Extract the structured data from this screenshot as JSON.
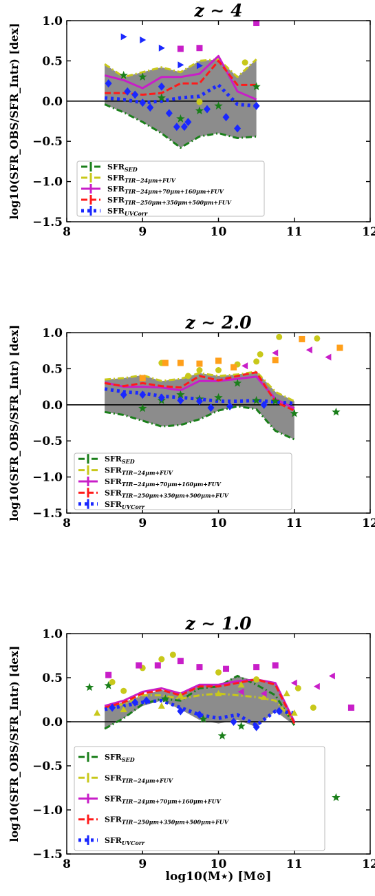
{
  "colors": {
    "sed": "#1a7f1a",
    "tir24": "#c8c81a",
    "tir160": "#c81ec8",
    "tir500": "#ff1a1a",
    "uv": "#1a28ff",
    "band": "#8c8c8c",
    "orange": "#ff9f1a"
  },
  "chart_data": [
    {
      "type": "line",
      "title": "z ∼ 4",
      "xlabel": "",
      "ylabel": "log10(SFR_OBS/SFR_Intr) [dex]",
      "xlim": [
        8,
        12
      ],
      "ylim": [
        -1.5,
        1.0
      ],
      "xticks": [
        8,
        9,
        10,
        11,
        12
      ],
      "yticks": [
        -1.5,
        -1.0,
        -0.5,
        0.0,
        0.5,
        1.0
      ],
      "x": [
        8.5,
        8.75,
        9.0,
        9.25,
        9.5,
        9.75,
        10.0,
        10.25,
        10.5
      ],
      "band_upper": [
        0.46,
        0.3,
        0.36,
        0.42,
        0.36,
        0.5,
        0.52,
        0.3,
        0.52
      ],
      "band_lower": [
        -0.04,
        -0.14,
        -0.26,
        -0.4,
        -0.58,
        -0.44,
        -0.4,
        -0.46,
        -0.44
      ],
      "series": [
        {
          "name": "SFR_SED",
          "key": "sed",
          "values": [
            -0.04,
            -0.14,
            -0.26,
            -0.4,
            -0.58,
            -0.44,
            -0.4,
            -0.46,
            -0.44
          ],
          "style": "dashdot"
        },
        {
          "name": "SFR_TIR−24μm+FUV",
          "key": "tir24",
          "values": [
            0.46,
            0.3,
            0.36,
            0.42,
            0.36,
            0.5,
            0.52,
            0.3,
            0.52
          ],
          "style": "dashdot"
        },
        {
          "name": "SFR_TIR−24μm+70μm+160μm+FUV",
          "key": "tir160",
          "values": [
            0.32,
            0.26,
            0.16,
            0.3,
            0.3,
            0.34,
            0.56,
            0.12,
            0.02
          ],
          "style": "solid"
        },
        {
          "name": "SFR_TIR−250μm+350μm+500μm+FUV",
          "key": "tir500",
          "values": [
            0.1,
            0.1,
            0.08,
            0.1,
            0.22,
            0.22,
            0.5,
            0.2,
            0.2
          ],
          "style": "dashed"
        },
        {
          "name": "SFR_UVCorr",
          "key": "uv",
          "values": [
            0.04,
            0.02,
            -0.02,
            0.0,
            0.04,
            0.06,
            0.2,
            -0.04,
            -0.06
          ],
          "style": "dotted"
        }
      ],
      "scatter": [
        {
          "key": "sed",
          "marker": "star",
          "points": [
            [
              8.75,
              0.32
            ],
            [
              9.0,
              0.3
            ],
            [
              9.25,
              0.04
            ],
            [
              9.5,
              -0.22
            ],
            [
              9.75,
              -0.12
            ],
            [
              10.0,
              -0.06
            ],
            [
              10.5,
              0.18
            ]
          ]
        },
        {
          "key": "tir24",
          "marker": "circle",
          "points": [
            [
              9.75,
              -0.01
            ],
            [
              10.35,
              0.48
            ]
          ]
        },
        {
          "key": "tir160",
          "marker": "square",
          "points": [
            [
              9.5,
              0.65
            ],
            [
              9.75,
              0.66
            ],
            [
              10.5,
              0.97
            ]
          ]
        },
        {
          "key": "uv",
          "marker": "triangle-right",
          "points": [
            [
              8.75,
              0.8
            ],
            [
              9.0,
              0.76
            ],
            [
              9.25,
              0.66
            ],
            [
              9.5,
              0.45
            ],
            [
              9.75,
              0.44
            ]
          ]
        },
        {
          "key": "uv",
          "marker": "diamond",
          "points": [
            [
              8.55,
              0.22
            ],
            [
              8.8,
              0.12
            ],
            [
              8.9,
              0.08
            ],
            [
              9.0,
              -0.02
            ],
            [
              9.1,
              -0.08
            ],
            [
              9.25,
              0.18
            ],
            [
              9.35,
              -0.15
            ],
            [
              9.45,
              -0.32
            ],
            [
              9.55,
              -0.32
            ],
            [
              9.6,
              -0.26
            ],
            [
              9.85,
              -0.1
            ],
            [
              10.1,
              -0.2
            ],
            [
              10.25,
              -0.34
            ],
            [
              10.5,
              -0.06
            ]
          ]
        }
      ],
      "legend": "lower-left"
    },
    {
      "type": "line",
      "title": "z ∼ 2.0",
      "xlabel": "",
      "ylabel": "log10(SFR_OBS/SFR_Intr) [dex]",
      "xlim": [
        8,
        12
      ],
      "ylim": [
        -1.5,
        1.0
      ],
      "xticks": [
        8,
        9,
        10,
        11,
        12
      ],
      "yticks": [
        -1.5,
        -1.0,
        -0.5,
        0.0,
        0.5,
        1.0
      ],
      "x": [
        8.5,
        8.75,
        9.0,
        9.25,
        9.5,
        9.75,
        10.0,
        10.25,
        10.5,
        10.75,
        11.0
      ],
      "band_upper": [
        0.35,
        0.37,
        0.41,
        0.33,
        0.36,
        0.44,
        0.4,
        0.42,
        0.46,
        0.18,
        0.05
      ],
      "band_lower": [
        -0.1,
        -0.14,
        -0.22,
        -0.3,
        -0.28,
        -0.2,
        -0.08,
        -0.02,
        -0.06,
        -0.36,
        -0.48
      ],
      "series": [
        {
          "name": "SFR_SED",
          "key": "sed",
          "values": [
            -0.1,
            -0.14,
            -0.22,
            -0.3,
            -0.28,
            -0.2,
            -0.08,
            -0.02,
            -0.06,
            -0.36,
            -0.48
          ],
          "style": "dashdot"
        },
        {
          "name": "SFR_TIR−24μm+FUV",
          "key": "tir24",
          "values": [
            0.35,
            0.37,
            0.41,
            0.33,
            0.36,
            0.44,
            0.4,
            0.42,
            0.46,
            0.18,
            0.05
          ],
          "style": "dashdot"
        },
        {
          "name": "SFR_TIR−24μm+70μm+160μm+FUV",
          "key": "tir160",
          "values": [
            0.31,
            0.25,
            0.25,
            0.24,
            0.2,
            0.33,
            0.33,
            0.36,
            0.39,
            0.08,
            -0.05
          ],
          "style": "solid"
        },
        {
          "name": "SFR_TIR−250μm+350μm+500μm+FUV",
          "key": "tir500",
          "values": [
            0.3,
            0.26,
            0.3,
            0.26,
            0.24,
            0.4,
            0.34,
            0.4,
            0.45,
            0.04,
            -0.08
          ],
          "style": "dashed"
        },
        {
          "name": "SFR_UVCorr",
          "key": "uv",
          "values": [
            0.22,
            0.18,
            0.16,
            0.12,
            0.1,
            0.08,
            0.05,
            0.05,
            0.06,
            0.04,
            0.02
          ],
          "style": "dotted"
        }
      ],
      "scatter": [
        {
          "key": "sed",
          "marker": "star",
          "points": [
            [
              9.0,
              -0.05
            ],
            [
              9.25,
              0.06
            ],
            [
              9.5,
              0.14
            ],
            [
              9.75,
              0.08
            ],
            [
              10.0,
              0.1
            ],
            [
              10.25,
              0.3
            ],
            [
              10.5,
              0.06
            ],
            [
              10.75,
              0.05
            ],
            [
              11.0,
              -0.12
            ],
            [
              11.55,
              -0.1
            ]
          ]
        },
        {
          "key": "tir24",
          "marker": "circle",
          "points": [
            [
              9.25,
              0.58
            ],
            [
              9.6,
              0.4
            ],
            [
              9.75,
              0.48
            ],
            [
              10.0,
              0.48
            ],
            [
              10.25,
              0.56
            ],
            [
              10.5,
              0.6
            ],
            [
              10.55,
              0.7
            ],
            [
              10.8,
              0.94
            ],
            [
              11.3,
              0.92
            ]
          ]
        },
        {
          "key": "orange",
          "marker": "square",
          "points": [
            [
              9.0,
              0.37
            ],
            [
              9.3,
              0.58
            ],
            [
              9.5,
              0.58
            ],
            [
              9.75,
              0.57
            ],
            [
              10.0,
              0.61
            ],
            [
              10.2,
              0.52
            ],
            [
              10.75,
              0.62
            ],
            [
              11.1,
              0.91
            ],
            [
              11.6,
              0.79
            ]
          ]
        },
        {
          "key": "tir160",
          "marker": "triangle-left",
          "points": [
            [
              10.35,
              0.54
            ],
            [
              10.75,
              0.72
            ],
            [
              11.2,
              0.76
            ],
            [
              11.45,
              0.66
            ]
          ]
        },
        {
          "key": "uv",
          "marker": "diamond",
          "points": [
            [
              8.75,
              0.14
            ],
            [
              9.0,
              0.14
            ],
            [
              9.25,
              0.1
            ],
            [
              9.5,
              0.06
            ],
            [
              9.75,
              0.05
            ],
            [
              9.9,
              -0.04
            ],
            [
              10.15,
              -0.02
            ],
            [
              10.6,
              0.0
            ]
          ]
        }
      ],
      "legend": "lower-left"
    },
    {
      "type": "line",
      "title": "z ∼ 1.0",
      "xlabel": "log10(M⋆) [M⊙]",
      "ylabel": "log10(SFR_OBS/SFR_Intr) [dex]",
      "xlim": [
        8,
        12
      ],
      "ylim": [
        -1.5,
        1.0
      ],
      "xticks": [
        8,
        9,
        10,
        11,
        12
      ],
      "yticks": [
        -1.5,
        -1.0,
        -0.5,
        0.0,
        0.5,
        1.0
      ],
      "x": [
        8.5,
        8.75,
        9.0,
        9.25,
        9.5,
        9.75,
        10.0,
        10.25,
        10.5,
        10.75,
        11.0
      ],
      "band_upper": [
        0.16,
        0.22,
        0.3,
        0.36,
        0.32,
        0.42,
        0.42,
        0.52,
        0.46,
        0.44,
        0.0
      ],
      "band_lower": [
        -0.08,
        0.04,
        0.18,
        0.24,
        0.14,
        0.02,
        -0.02,
        0.02,
        -0.06,
        0.12,
        -0.04
      ],
      "series": [
        {
          "name": "SFR_SED",
          "key": "sed",
          "values": [
            -0.08,
            0.04,
            0.2,
            0.26,
            0.24,
            0.38,
            0.4,
            0.52,
            0.42,
            0.3,
            -0.04
          ],
          "style": "dashdot"
        },
        {
          "name": "SFR_TIR−24μm+FUV",
          "key": "tir24",
          "values": [
            0.16,
            0.2,
            0.3,
            0.3,
            0.26,
            0.3,
            0.32,
            0.3,
            0.28,
            0.24,
            0.0
          ],
          "style": "dashdot"
        },
        {
          "name": "SFR_TIR−24μm+70μm+160μm+FUV",
          "key": "tir160",
          "values": [
            0.18,
            0.24,
            0.34,
            0.38,
            0.32,
            0.42,
            0.42,
            0.46,
            0.48,
            0.44,
            0.0
          ],
          "style": "solid"
        },
        {
          "name": "SFR_TIR−250μm+350μm+500μm+FUV",
          "key": "tir500",
          "values": [
            0.16,
            0.22,
            0.32,
            0.36,
            0.3,
            0.4,
            0.4,
            0.44,
            0.48,
            0.42,
            -0.02
          ],
          "style": "dashed"
        },
        {
          "name": "SFR_UVCorr",
          "key": "uv",
          "values": [
            0.14,
            0.18,
            0.22,
            0.24,
            0.16,
            0.08,
            0.04,
            0.08,
            -0.04,
            0.12,
            0.1
          ],
          "style": "dotted"
        }
      ],
      "scatter": [
        {
          "key": "sed",
          "marker": "star",
          "points": [
            [
              8.3,
              0.39
            ],
            [
              8.55,
              0.41
            ],
            [
              9.3,
              0.26
            ],
            [
              9.8,
              0.03
            ],
            [
              10.05,
              -0.16
            ],
            [
              10.3,
              -0.05
            ],
            [
              11.55,
              -0.86
            ]
          ]
        },
        {
          "key": "tir24",
          "marker": "circle",
          "points": [
            [
              8.6,
              0.45
            ],
            [
              8.75,
              0.35
            ],
            [
              9.0,
              0.61
            ],
            [
              9.25,
              0.71
            ],
            [
              9.4,
              0.76
            ],
            [
              9.75,
              0.62
            ],
            [
              10.0,
              0.56
            ],
            [
              10.5,
              0.48
            ],
            [
              11.05,
              0.38
            ],
            [
              11.25,
              0.16
            ]
          ]
        },
        {
          "key": "tir24",
          "marker": "triangle-up",
          "points": [
            [
              8.4,
              0.1
            ],
            [
              8.75,
              0.14
            ],
            [
              9.25,
              0.18
            ],
            [
              9.5,
              0.3
            ],
            [
              10.0,
              0.32
            ],
            [
              10.3,
              0.42
            ],
            [
              10.6,
              0.28
            ],
            [
              10.9,
              0.32
            ],
            [
              11.0,
              0.1
            ]
          ]
        },
        {
          "key": "tir160",
          "marker": "square",
          "points": [
            [
              8.55,
              0.53
            ],
            [
              8.95,
              0.64
            ],
            [
              9.2,
              0.64
            ],
            [
              9.5,
              0.69
            ],
            [
              9.75,
              0.62
            ],
            [
              10.1,
              0.6
            ],
            [
              10.5,
              0.62
            ],
            [
              10.75,
              0.64
            ],
            [
              11.75,
              0.16
            ]
          ]
        },
        {
          "key": "tir160",
          "marker": "triangle-left",
          "points": [
            [
              10.3,
              0.34
            ],
            [
              10.6,
              0.32
            ],
            [
              11.0,
              0.44
            ],
            [
              11.3,
              0.4
            ],
            [
              11.5,
              0.52
            ]
          ]
        },
        {
          "key": "uv",
          "marker": "diamond",
          "points": [
            [
              8.6,
              0.16
            ],
            [
              8.9,
              0.22
            ],
            [
              9.05,
              0.24
            ],
            [
              9.5,
              0.12
            ],
            [
              9.75,
              0.08
            ],
            [
              10.2,
              0.0
            ],
            [
              10.5,
              -0.06
            ],
            [
              10.8,
              0.12
            ]
          ]
        }
      ],
      "legend": "lower-left"
    }
  ]
}
